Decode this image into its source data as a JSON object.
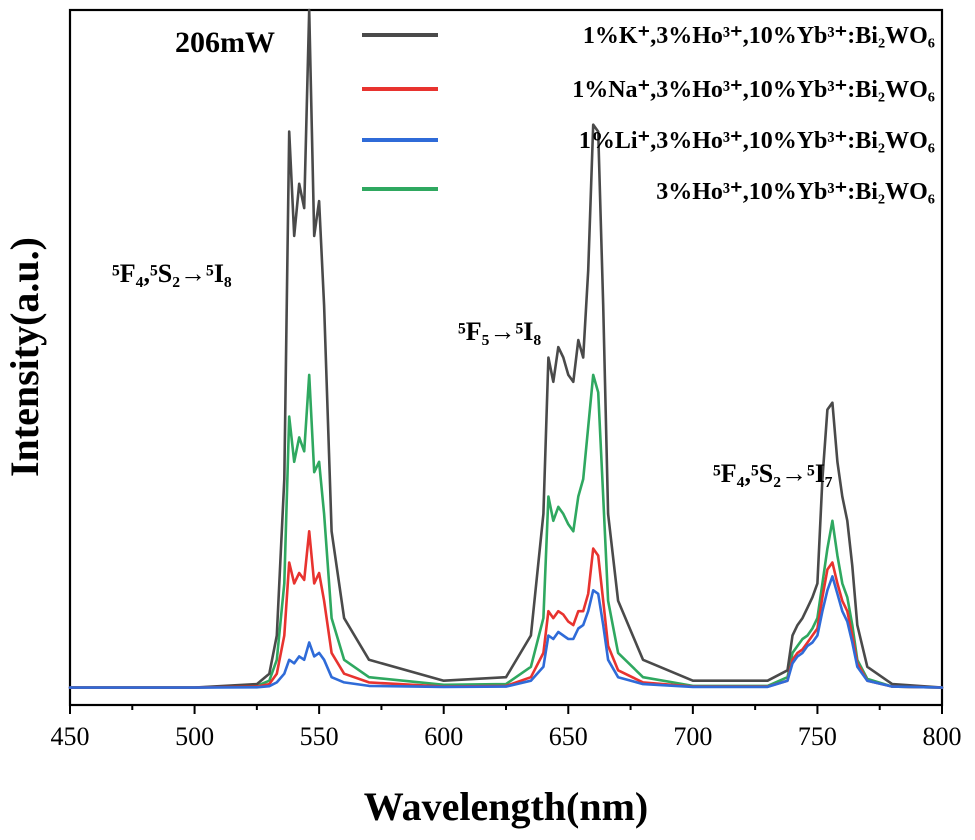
{
  "chart_data": {
    "type": "line",
    "xlabel": "Wavelength(nm)",
    "ylabel": "Intensity(a.u.)",
    "xlim": [
      450,
      800
    ],
    "ylim": [
      -0.05,
      1.95
    ],
    "x_ticks": [
      "450",
      "500",
      "550",
      "600",
      "650",
      "700",
      "750",
      "800"
    ],
    "y_ticks_shown": false,
    "power_label": "206mW",
    "legend_position": "top-right",
    "annotations": [
      {
        "text": "⁵F₄,⁵S₂→⁵I₈",
        "near_x": 545
      },
      {
        "text": "⁵F₅→⁵I₈",
        "near_x": 655
      },
      {
        "text": "⁵F₄,⁵S₂→⁵I₇",
        "near_x": 755
      }
    ],
    "x": [
      450,
      500,
      525,
      530,
      533,
      536,
      538,
      540,
      542,
      544,
      546,
      548,
      550,
      552,
      555,
      560,
      570,
      600,
      625,
      635,
      640,
      642,
      644,
      646,
      648,
      650,
      652,
      654,
      656,
      658,
      660,
      662,
      664,
      666,
      670,
      680,
      700,
      730,
      738,
      740,
      742,
      744,
      746,
      748,
      750,
      752,
      754,
      756,
      758,
      760,
      762,
      764,
      766,
      770,
      780,
      800
    ],
    "series": [
      {
        "name": "1%K⁺,3%Ho³⁺,10%Yb³⁺:Bi₂WO₆",
        "color": "#4a4a4a",
        "values": [
          0,
          0,
          0.01,
          0.04,
          0.15,
          0.6,
          1.6,
          1.3,
          1.45,
          1.38,
          1.95,
          1.3,
          1.4,
          1.1,
          0.45,
          0.2,
          0.08,
          0.02,
          0.03,
          0.15,
          0.5,
          0.95,
          0.88,
          0.98,
          0.95,
          0.9,
          0.88,
          1.0,
          0.95,
          1.2,
          1.62,
          1.6,
          1.1,
          0.5,
          0.25,
          0.08,
          0.02,
          0.02,
          0.05,
          0.15,
          0.18,
          0.2,
          0.23,
          0.26,
          0.3,
          0.6,
          0.8,
          0.82,
          0.65,
          0.55,
          0.48,
          0.35,
          0.18,
          0.06,
          0.01,
          0
        ]
      },
      {
        "name": "1%Na⁺,3%Ho³⁺,10%Yb³⁺:Bi₂WO₆",
        "color": "#e8332f",
        "values": [
          0,
          0,
          0.003,
          0.01,
          0.04,
          0.15,
          0.36,
          0.3,
          0.33,
          0.31,
          0.45,
          0.3,
          0.33,
          0.25,
          0.1,
          0.04,
          0.015,
          0.003,
          0.005,
          0.03,
          0.1,
          0.22,
          0.2,
          0.22,
          0.21,
          0.19,
          0.18,
          0.22,
          0.22,
          0.27,
          0.4,
          0.38,
          0.25,
          0.12,
          0.05,
          0.015,
          0.003,
          0.003,
          0.02,
          0.08,
          0.1,
          0.11,
          0.13,
          0.15,
          0.17,
          0.26,
          0.34,
          0.36,
          0.3,
          0.25,
          0.22,
          0.15,
          0.07,
          0.02,
          0.003,
          0
        ]
      },
      {
        "name": "1%Li⁺,3%Ho³⁺,10%Yb³⁺:Bi₂WO₆",
        "color": "#2f6bd8",
        "values": [
          0,
          0,
          0.001,
          0.004,
          0.015,
          0.04,
          0.08,
          0.07,
          0.09,
          0.08,
          0.13,
          0.09,
          0.1,
          0.08,
          0.03,
          0.015,
          0.005,
          0.002,
          0.003,
          0.02,
          0.06,
          0.15,
          0.14,
          0.16,
          0.15,
          0.14,
          0.14,
          0.17,
          0.18,
          0.22,
          0.28,
          0.27,
          0.18,
          0.08,
          0.03,
          0.01,
          0.002,
          0.002,
          0.02,
          0.07,
          0.09,
          0.1,
          0.12,
          0.13,
          0.15,
          0.22,
          0.28,
          0.32,
          0.27,
          0.22,
          0.19,
          0.13,
          0.06,
          0.02,
          0.003,
          0
        ]
      },
      {
        "name": "3%Ho³⁺,10%Yb³⁺:Bi₂WO₆",
        "color": "#2fa860",
        "values": [
          0,
          0,
          0.005,
          0.02,
          0.08,
          0.3,
          0.78,
          0.65,
          0.72,
          0.68,
          0.9,
          0.62,
          0.65,
          0.5,
          0.2,
          0.08,
          0.03,
          0.008,
          0.01,
          0.06,
          0.2,
          0.55,
          0.48,
          0.52,
          0.5,
          0.47,
          0.45,
          0.55,
          0.6,
          0.75,
          0.9,
          0.85,
          0.55,
          0.25,
          0.1,
          0.03,
          0.005,
          0.005,
          0.03,
          0.1,
          0.12,
          0.14,
          0.15,
          0.17,
          0.2,
          0.3,
          0.4,
          0.48,
          0.38,
          0.3,
          0.26,
          0.18,
          0.08,
          0.025,
          0.003,
          0
        ]
      }
    ]
  }
}
